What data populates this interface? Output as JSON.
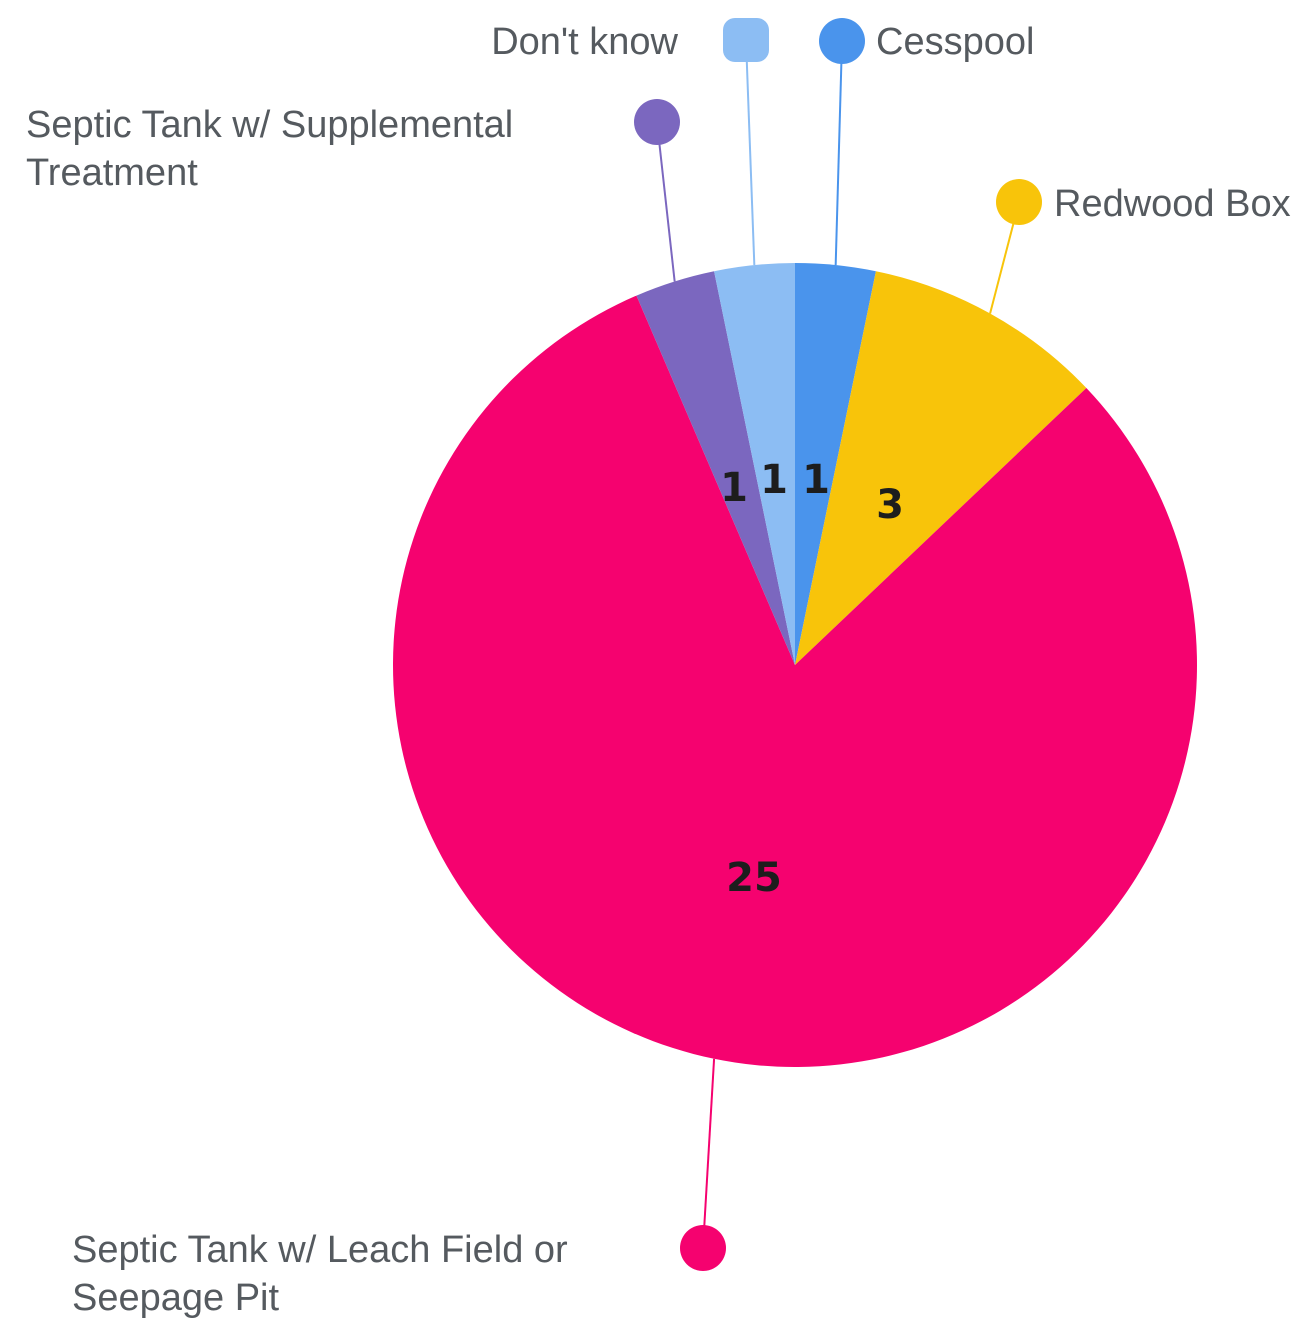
{
  "chart_data": {
    "type": "pie",
    "title": "",
    "categories": [
      "Cesspool",
      "Redwood Box",
      "Septic Tank w/ Leach Field or Seepage Pit",
      "Septic Tank w/ Supplemental Treatment",
      "Don't know"
    ],
    "values": [
      1,
      3,
      25,
      1,
      1
    ],
    "colors": [
      "#4a94ec",
      "#f8c40a",
      "#f5026f",
      "#7b67bf",
      "#8cbdf3"
    ],
    "labels": [
      {
        "lines": [
          "Cesspool"
        ]
      },
      {
        "lines": [
          "Redwood Box"
        ]
      },
      {
        "lines": [
          "Septic Tank w/ Leach Field or",
          "Seepage Pit"
        ]
      },
      {
        "lines": [
          "Septic Tank w/ Supplemental",
          "Treatment"
        ]
      },
      {
        "lines": [
          "Don't know"
        ]
      }
    ],
    "legend": "none",
    "data_labels": true
  }
}
